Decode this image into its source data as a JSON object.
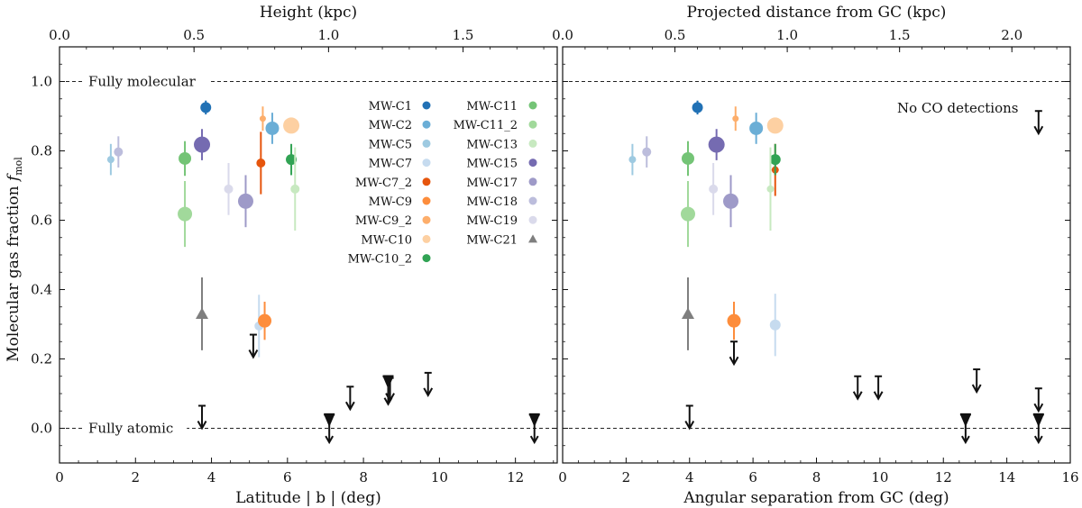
{
  "chart_data": [
    {
      "type": "scatter",
      "name": "latitude-panel",
      "xlabel": "Latitude | b | (deg)",
      "top_xlabel": "Height (kpc)",
      "ylabel": "Molecular gas fraction f_mol",
      "ylabel_main": "Molecular gas fraction ",
      "ylabel_symbol": "f",
      "ylabel_sub": "mol",
      "xlim": [
        0,
        13.1
      ],
      "ylim": [
        -0.1,
        1.1
      ],
      "x_ticks": [
        "0",
        "2",
        "4",
        "6",
        "8",
        "10",
        "12"
      ],
      "x_tick_values": [
        0,
        2,
        4,
        6,
        8,
        10,
        12
      ],
      "top_ticks": [
        "0.0",
        "0.5",
        "1.0",
        "1.5"
      ],
      "top_tick_values": [
        0,
        0.5,
        1.0,
        1.5
      ],
      "top_range": [
        0,
        1.85
      ],
      "y_ticks": [
        "0.0",
        "0.2",
        "0.4",
        "0.6",
        "0.8",
        "1.0"
      ],
      "y_tick_values": [
        0,
        0.2,
        0.4,
        0.6,
        0.8,
        1.0
      ],
      "hlines": [
        {
          "y": 1.0,
          "label": "Fully molecular"
        },
        {
          "y": 0.0,
          "label": "Fully atomic"
        }
      ],
      "points": [
        {
          "name": "MW-C1",
          "x": 3.85,
          "y": 0.925,
          "err": 0.02,
          "size": 6,
          "color": "#2171b5",
          "shape": "circle"
        },
        {
          "name": "MW-C2",
          "x": 5.6,
          "y": 0.865,
          "err": 0.045,
          "size": 7.5,
          "color": "#6baed6",
          "shape": "circle"
        },
        {
          "name": "MW-C5",
          "x": 1.35,
          "y": 0.775,
          "err": 0.045,
          "size": 4,
          "color": "#9ecae1",
          "shape": "circle"
        },
        {
          "name": "MW-C7",
          "x": 5.25,
          "y": 0.295,
          "err": 0.09,
          "size": 5,
          "color": "#c6dbef",
          "shape": "circle"
        },
        {
          "name": "MW-C7_2",
          "x": 5.3,
          "y": 0.765,
          "err": 0.09,
          "size": 5,
          "color": "#e6550d",
          "shape": "circle"
        },
        {
          "name": "MW-C9",
          "x": 5.4,
          "y": 0.31,
          "err": 0.055,
          "size": 7.5,
          "color": "#fd8d3c",
          "shape": "circle"
        },
        {
          "name": "MW-C9_2",
          "x": 5.35,
          "y": 0.893,
          "err": 0.035,
          "size": 3.5,
          "color": "#fdae6b",
          "shape": "circle"
        },
        {
          "name": "MW-C10",
          "x": 6.1,
          "y": 0.873,
          "err": 0.02,
          "size": 9,
          "color": "#fdd0a2",
          "shape": "circle"
        },
        {
          "name": "MW-C10_2",
          "x": 6.1,
          "y": 0.775,
          "err": 0.045,
          "size": 6,
          "color": "#31a354",
          "shape": "circle"
        },
        {
          "name": "MW-C11",
          "x": 3.3,
          "y": 0.778,
          "err": 0.05,
          "size": 7,
          "color": "#74c476",
          "shape": "circle"
        },
        {
          "name": "MW-C11_2",
          "x": 3.3,
          "y": 0.618,
          "err": 0.095,
          "size": 8,
          "color": "#a1d99b",
          "shape": "circle"
        },
        {
          "name": "MW-C13",
          "x": 6.2,
          "y": 0.69,
          "err": 0.12,
          "size": 5,
          "color": "#c7e9c0",
          "shape": "circle"
        },
        {
          "name": "MW-C15",
          "x": 3.75,
          "y": 0.818,
          "err": 0.045,
          "size": 9,
          "color": "#756bb1",
          "shape": "circle"
        },
        {
          "name": "MW-C17",
          "x": 4.9,
          "y": 0.655,
          "err": 0.075,
          "size": 8.5,
          "color": "#9e9ac8",
          "shape": "circle"
        },
        {
          "name": "MW-C18",
          "x": 1.55,
          "y": 0.797,
          "err": 0.045,
          "size": 5,
          "color": "#bcbddc",
          "shape": "circle"
        },
        {
          "name": "MW-C19",
          "x": 4.45,
          "y": 0.69,
          "err": 0.075,
          "size": 5,
          "color": "#dadaeb",
          "shape": "circle"
        },
        {
          "name": "MW-C21",
          "x": 3.75,
          "y": 0.33,
          "err": 0.105,
          "size": 7,
          "color": "#7f7f7f",
          "shape": "triangle"
        }
      ],
      "upper_limits": [
        {
          "x": 3.75,
          "y": 0.065,
          "bar": false
        },
        {
          "x": 7.1,
          "y": 0.04,
          "bar": true
        },
        {
          "x": 7.65,
          "y": 0.12,
          "bar": false
        },
        {
          "x": 8.65,
          "y": 0.15,
          "bar": true
        },
        {
          "x": 8.7,
          "y": 0.145,
          "bar": false
        },
        {
          "x": 9.7,
          "y": 0.16,
          "bar": false
        },
        {
          "x": 12.5,
          "y": 0.04,
          "bar": true
        },
        {
          "x": 5.1,
          "y": 0.27,
          "bar": false
        }
      ]
    },
    {
      "type": "scatter",
      "name": "separation-panel",
      "xlabel": "Angular separation from GC (deg)",
      "top_xlabel": "Projected distance from GC (kpc)",
      "xlim": [
        0,
        16
      ],
      "ylim": [
        -0.1,
        1.1
      ],
      "x_ticks": [
        "0",
        "2",
        "4",
        "6",
        "8",
        "10",
        "12",
        "14",
        "16"
      ],
      "x_tick_values": [
        0,
        2,
        4,
        6,
        8,
        10,
        12,
        14,
        16
      ],
      "top_ticks": [
        "0.0",
        "0.5",
        "1.0",
        "1.5",
        "2.0"
      ],
      "top_tick_values": [
        0,
        0.5,
        1.0,
        1.5,
        2.0
      ],
      "top_range": [
        0,
        2.26
      ],
      "y_ticks": [
        "0.0",
        "0.2",
        "0.4",
        "0.6",
        "0.8",
        "1.0"
      ],
      "y_tick_values": [
        0,
        0.2,
        0.4,
        0.6,
        0.8,
        1.0
      ],
      "hlines": [
        {
          "y": 1.0,
          "label": ""
        },
        {
          "y": 0.0,
          "label": ""
        }
      ],
      "annotation": "No CO detections",
      "points": [
        {
          "name": "MW-C1",
          "x": 4.25,
          "y": 0.925,
          "err": 0.02,
          "size": 6,
          "color": "#2171b5",
          "shape": "circle"
        },
        {
          "name": "MW-C2",
          "x": 6.1,
          "y": 0.865,
          "err": 0.045,
          "size": 7.5,
          "color": "#6baed6",
          "shape": "circle"
        },
        {
          "name": "MW-C5",
          "x": 2.2,
          "y": 0.775,
          "err": 0.045,
          "size": 4,
          "color": "#9ecae1",
          "shape": "circle"
        },
        {
          "name": "MW-C7",
          "x": 6.7,
          "y": 0.298,
          "err": 0.09,
          "size": 6,
          "color": "#c6dbef",
          "shape": "circle"
        },
        {
          "name": "MW-C7_2",
          "x": 6.7,
          "y": 0.745,
          "err": 0.075,
          "size": 4,
          "color": "#e6550d",
          "shape": "circle"
        },
        {
          "name": "MW-C9",
          "x": 5.4,
          "y": 0.31,
          "err": 0.055,
          "size": 7.5,
          "color": "#fd8d3c",
          "shape": "circle"
        },
        {
          "name": "MW-C9_2",
          "x": 5.45,
          "y": 0.893,
          "err": 0.035,
          "size": 3.5,
          "color": "#fdae6b",
          "shape": "circle"
        },
        {
          "name": "MW-C10",
          "x": 6.7,
          "y": 0.873,
          "err": 0.02,
          "size": 9,
          "color": "#fdd0a2",
          "shape": "circle"
        },
        {
          "name": "MW-C10_2",
          "x": 6.7,
          "y": 0.775,
          "err": 0.045,
          "size": 6,
          "color": "#31a354",
          "shape": "circle"
        },
        {
          "name": "MW-C11",
          "x": 3.95,
          "y": 0.778,
          "err": 0.05,
          "size": 7,
          "color": "#74c476",
          "shape": "circle"
        },
        {
          "name": "MW-C11_2",
          "x": 3.95,
          "y": 0.618,
          "err": 0.095,
          "size": 8,
          "color": "#a1d99b",
          "shape": "circle"
        },
        {
          "name": "MW-C13",
          "x": 6.55,
          "y": 0.69,
          "err": 0.12,
          "size": 4,
          "color": "#c7e9c0",
          "shape": "circle"
        },
        {
          "name": "MW-C15",
          "x": 4.85,
          "y": 0.818,
          "err": 0.045,
          "size": 9,
          "color": "#756bb1",
          "shape": "circle"
        },
        {
          "name": "MW-C17",
          "x": 5.3,
          "y": 0.655,
          "err": 0.075,
          "size": 8.5,
          "color": "#9e9ac8",
          "shape": "circle"
        },
        {
          "name": "MW-C18",
          "x": 2.65,
          "y": 0.797,
          "err": 0.045,
          "size": 5,
          "color": "#bcbddc",
          "shape": "circle"
        },
        {
          "name": "MW-C19",
          "x": 4.75,
          "y": 0.69,
          "err": 0.075,
          "size": 5,
          "color": "#dadaeb",
          "shape": "circle"
        },
        {
          "name": "MW-C21",
          "x": 3.95,
          "y": 0.33,
          "err": 0.105,
          "size": 7,
          "color": "#7f7f7f",
          "shape": "triangle"
        }
      ],
      "upper_limits": [
        {
          "x": 4.0,
          "y": 0.065,
          "bar": false
        },
        {
          "x": 5.4,
          "y": 0.25,
          "bar": false
        },
        {
          "x": 9.3,
          "y": 0.15,
          "bar": false
        },
        {
          "x": 9.95,
          "y": 0.15,
          "bar": false
        },
        {
          "x": 13.05,
          "y": 0.17,
          "bar": false
        },
        {
          "x": 12.7,
          "y": 0.04,
          "bar": true
        },
        {
          "x": 15.0,
          "y": 0.115,
          "bar": false
        },
        {
          "x": 15.0,
          "y": 0.04,
          "bar": true
        },
        {
          "x": 15.0,
          "y": 0.915,
          "bar": false
        }
      ]
    }
  ],
  "legend": {
    "col1": [
      "MW-C1",
      "MW-C2",
      "MW-C5",
      "MW-C7",
      "MW-C7_2",
      "MW-C9",
      "MW-C9_2",
      "MW-C10",
      "MW-C10_2"
    ],
    "col2": [
      "MW-C11",
      "MW-C11_2",
      "MW-C13",
      "MW-C15",
      "MW-C17",
      "MW-C18",
      "MW-C19",
      "MW-C21"
    ]
  }
}
